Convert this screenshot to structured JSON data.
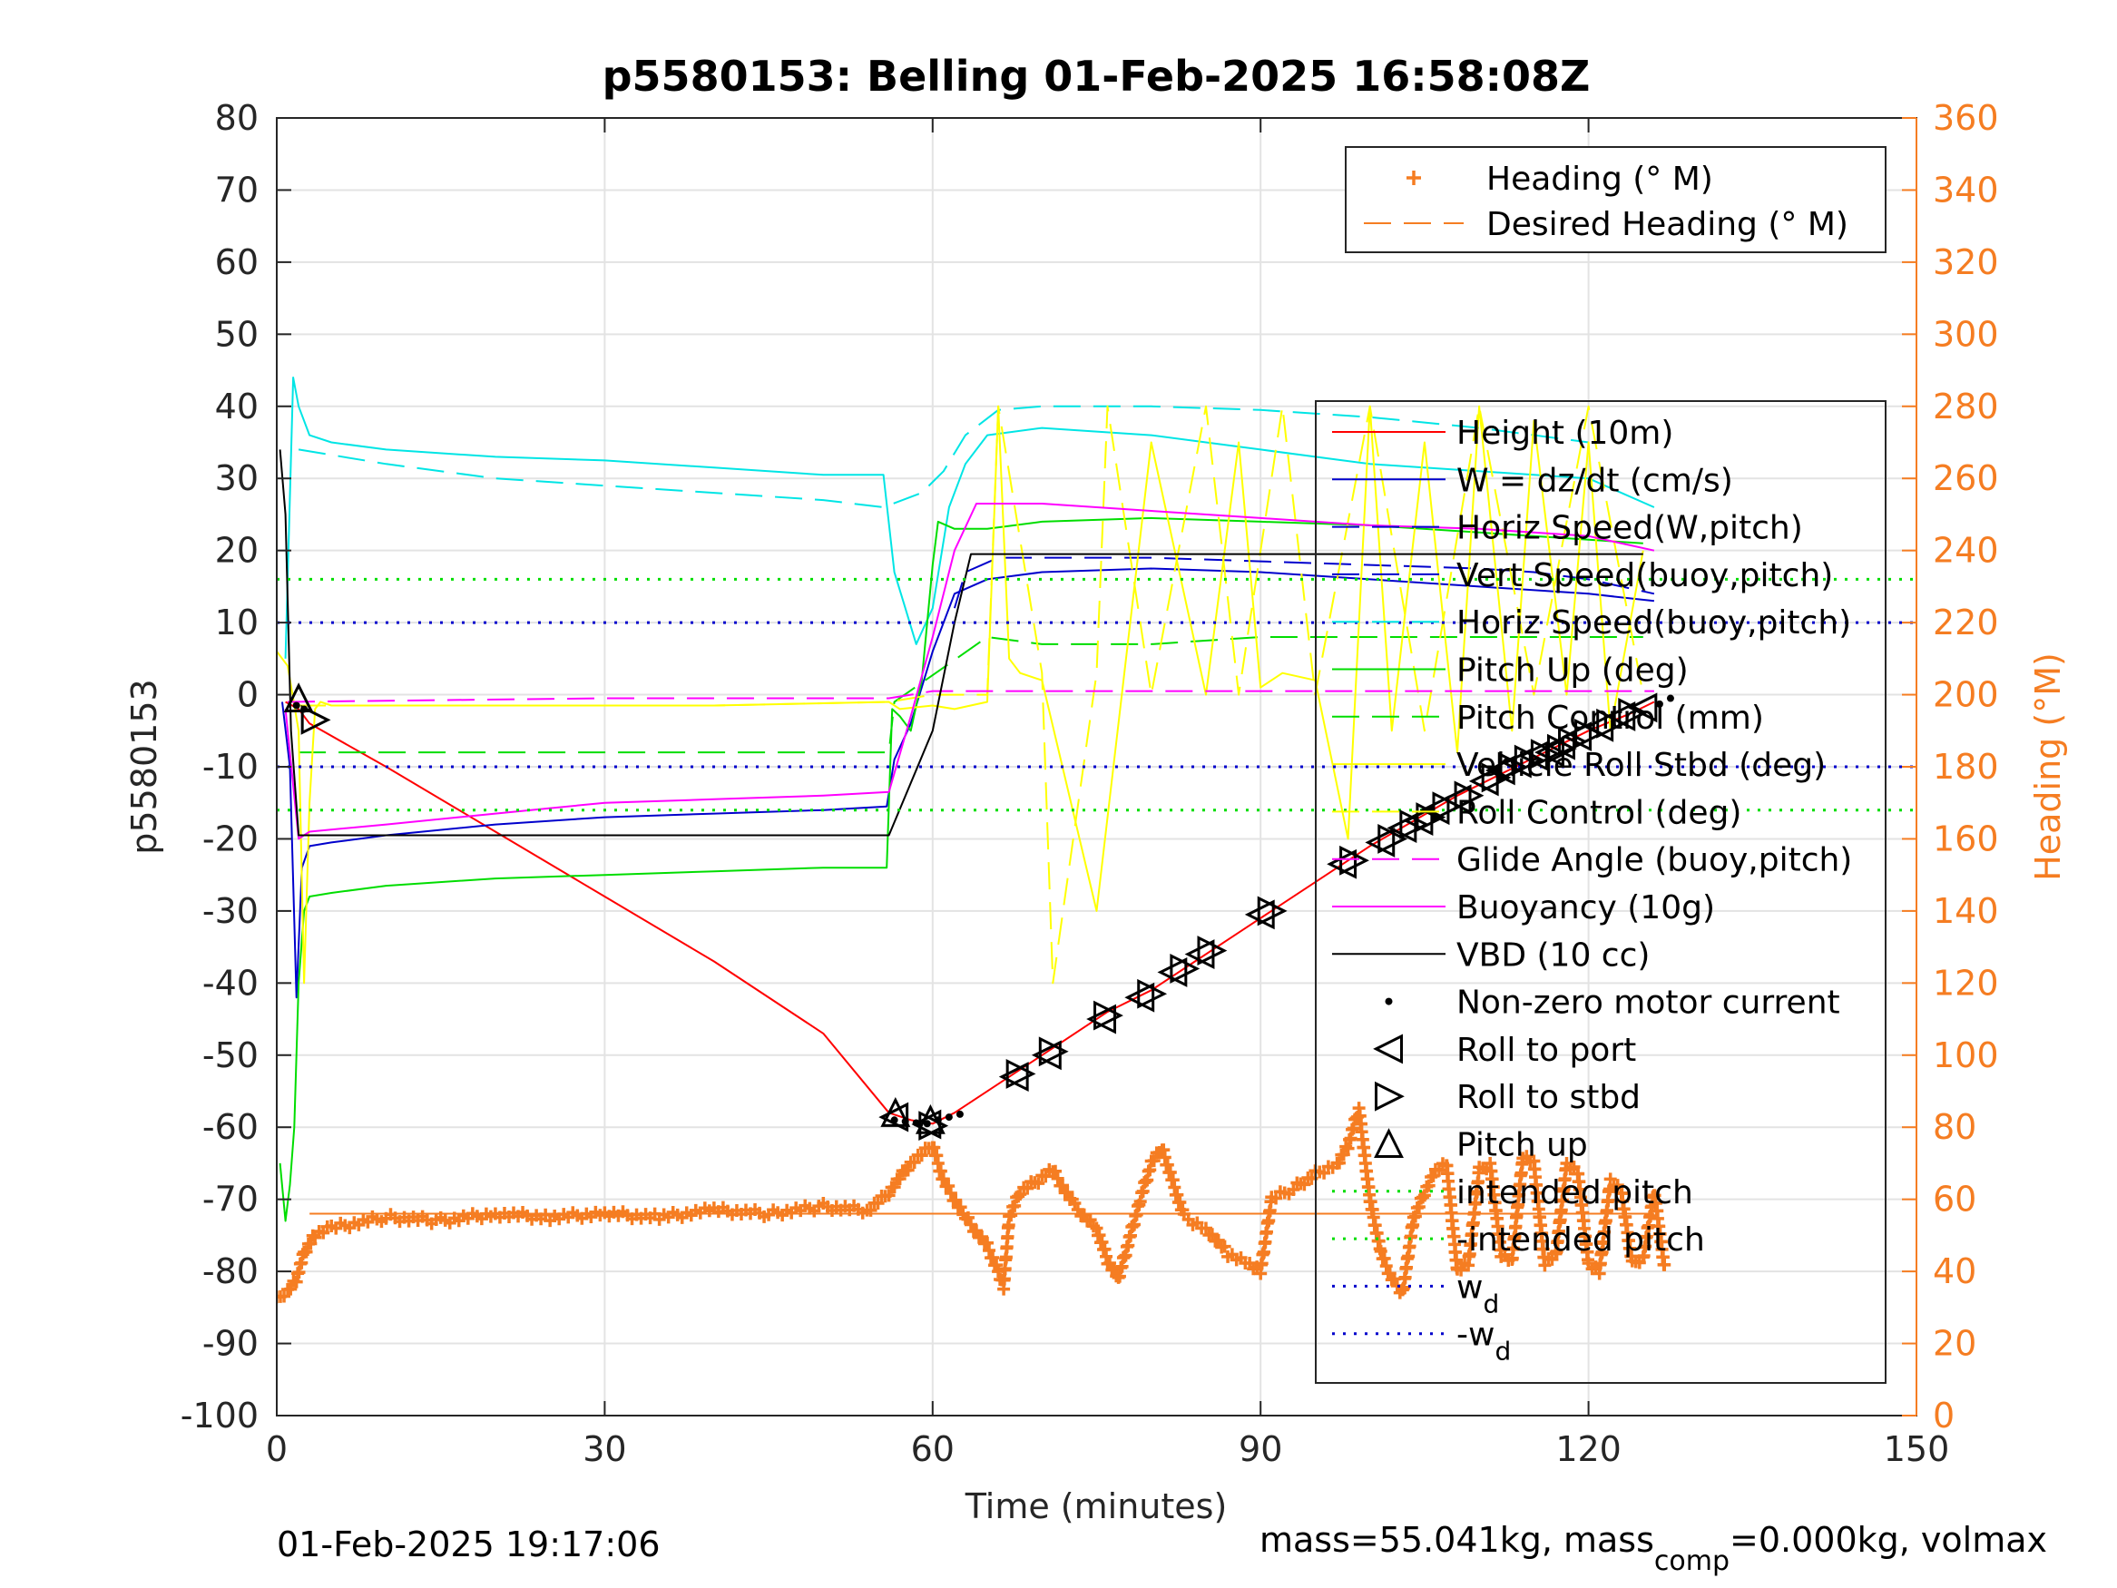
{
  "chart_data": {
    "type": "line",
    "title": "p5580153: Belling 01-Feb-2025 16:58:08Z",
    "xlabel": "Time (minutes)",
    "ylabel": "p5580153",
    "ylabel_right": "Heading (°M)",
    "xlim": [
      0,
      150
    ],
    "ylim": [
      -100,
      80
    ],
    "ylim_right": [
      0,
      360
    ],
    "xticks": [
      "0",
      "30",
      "60",
      "90",
      "120",
      "150"
    ],
    "yticks": [
      "80",
      "70",
      "60",
      "50",
      "40",
      "30",
      "20",
      "10",
      "0",
      "-10",
      "-20",
      "-30",
      "-40",
      "-50",
      "-60",
      "-70",
      "-80",
      "-90",
      "-100"
    ],
    "yticks_right": [
      "360",
      "340",
      "320",
      "300",
      "280",
      "260",
      "240",
      "220",
      "200",
      "180",
      "160",
      "140",
      "120",
      "100",
      "80",
      "60",
      "40",
      "20",
      "0"
    ],
    "grid": true,
    "footer_left": "01-Feb-2025 19:17:06",
    "footer_right": "mass=55.041kg, mass",
    "footer_sub": "comp",
    "footer_right2": "=0.000kg, volmax",
    "colors": {
      "red": "#ff0000",
      "blue": "#0000cc",
      "magenta": "#ff00ff",
      "cyan": "#00e5e5",
      "green": "#00dd00",
      "yellow": "#ffff00",
      "black": "#000000",
      "orange": "#f57d22",
      "grid": "#e3e3e3"
    },
    "legend_top": {
      "position": "top-right",
      "entries": [
        {
          "label": "Heading (° M)",
          "style": "plus",
          "color": "orange"
        },
        {
          "label": "Desired Heading (° M)",
          "style": "dash",
          "color": "orange"
        }
      ]
    },
    "legend_main": {
      "position": "right",
      "entries": [
        {
          "label": "Height (10m)",
          "style": "line",
          "color": "red"
        },
        {
          "label": "W = dz/dt (cm/s)",
          "style": "line",
          "color": "blue"
        },
        {
          "label": "Horiz Speed(W,pitch)",
          "style": "dash",
          "color": "blue"
        },
        {
          "label": "Vert Speed(buoy,pitch)",
          "style": "dash",
          "color": "blue"
        },
        {
          "label": "Horiz Speed(buoy,pitch)",
          "style": "dash",
          "color": "cyan"
        },
        {
          "label": "Pitch Up (deg)",
          "style": "line",
          "color": "green"
        },
        {
          "label": "Pitch Control (mm)",
          "style": "dash",
          "color": "green"
        },
        {
          "label": "Vehicle Roll Stbd (deg)",
          "style": "line",
          "color": "yellow"
        },
        {
          "label": "Roll Control (deg)",
          "style": "dash",
          "color": "yellow"
        },
        {
          "label": "Glide Angle (buoy,pitch)",
          "style": "dash",
          "color": "magenta"
        },
        {
          "label": "Buoyancy (10g)",
          "style": "line",
          "color": "magenta"
        },
        {
          "label": "VBD (10 cc)",
          "style": "line",
          "color": "black"
        },
        {
          "label": "Non-zero motor current",
          "style": "dot",
          "color": "black"
        },
        {
          "label": "Roll to port",
          "style": "tri-left",
          "color": "black"
        },
        {
          "label": "Roll to stbd",
          "style": "tri-right",
          "color": "black"
        },
        {
          "label": "Pitch up",
          "style": "tri-up",
          "color": "black"
        },
        {
          "label": "intended pitch",
          "style": "dots",
          "color": "green"
        },
        {
          "label": "-intended pitch",
          "style": "dots",
          "color": "green"
        },
        {
          "label": "w",
          "sub": "d",
          "style": "dots",
          "color": "blue"
        },
        {
          "label": "-w",
          "sub": "d",
          "style": "dots",
          "color": "blue"
        }
      ]
    },
    "series": [
      {
        "name": "Height (10m)",
        "color": "red",
        "style": "line",
        "x": [
          0.8,
          2,
          3,
          10,
          20,
          30,
          40,
          50,
          56,
          58,
          60,
          62,
          64,
          68,
          72,
          76,
          80,
          84,
          88,
          92,
          96,
          100,
          104,
          108,
          112,
          116,
          120,
          124,
          126
        ],
        "y": [
          -1,
          -2,
          -4,
          -10,
          -19,
          -28,
          -37,
          -47,
          -58,
          -59,
          -59.5,
          -58,
          -56,
          -52,
          -48,
          -44,
          -41,
          -37,
          -33,
          -29,
          -25,
          -21,
          -17.5,
          -14,
          -11,
          -8,
          -5,
          -2.5,
          -1
        ]
      },
      {
        "name": "W = dz/dt (cm/s)",
        "color": "blue",
        "style": "line",
        "x": [
          0.5,
          1.2,
          1.8,
          2.3,
          3,
          5,
          10,
          20,
          30,
          40,
          50,
          55.8,
          56.5,
          58,
          60,
          62,
          65,
          70,
          80,
          90,
          100,
          110,
          120,
          126
        ],
        "y": [
          -1,
          -10,
          -42,
          -24,
          -21,
          -20.5,
          -19.5,
          -18,
          -17,
          -16.5,
          -16,
          -15.5,
          -9,
          -4,
          6,
          14,
          16,
          17,
          17.5,
          17,
          16,
          15,
          14,
          13
        ]
      },
      {
        "name": "Horiz Speed(W,pitch)",
        "color": "blue",
        "style": "dash",
        "x": [
          62,
          63,
          66,
          70,
          80,
          90,
          100,
          110,
          115,
          120,
          126
        ],
        "y": [
          12,
          17,
          19,
          19,
          19,
          18.5,
          18,
          17.5,
          17,
          16,
          14
        ]
      },
      {
        "name": "Horiz Speed(buoy,pitch)",
        "color": "cyan",
        "style": "line",
        "x": [
          0.8,
          1.5,
          2,
          3,
          5,
          10,
          20,
          30,
          40,
          50,
          55.5,
          56.5,
          57.5,
          58.5,
          60,
          61.5,
          63,
          65,
          70,
          80,
          90,
          100,
          110,
          120,
          126
        ],
        "y": [
          5,
          44,
          40,
          36,
          35,
          34,
          33,
          32.5,
          31.5,
          30.5,
          30.5,
          17,
          12,
          7,
          12,
          26,
          32,
          36,
          37,
          36,
          34,
          32,
          31,
          30,
          26
        ]
      },
      {
        "name": "Horiz Speed(buoy,pitch) dash",
        "color": "cyan",
        "style": "dash",
        "x": [
          2,
          10,
          20,
          30,
          40,
          50,
          55.5,
          59,
          61,
          63,
          66,
          70,
          80,
          90,
          100,
          110,
          120
        ],
        "y": [
          34,
          32,
          30,
          29,
          28,
          27,
          26,
          28,
          31,
          36,
          39.5,
          40,
          40,
          39.5,
          38.5,
          37,
          35
        ]
      },
      {
        "name": "Pitch Up (deg)",
        "color": "green",
        "style": "line",
        "x": [
          0.3,
          0.8,
          1.2,
          1.6,
          2,
          2.5,
          3,
          5,
          10,
          20,
          30,
          40,
          50,
          55.8,
          56.3,
          57,
          58,
          59,
          60,
          60.5,
          62,
          65,
          70,
          80,
          90,
          100,
          110,
          120,
          125
        ],
        "y": [
          -65,
          -73,
          -68,
          -60,
          -40,
          -30,
          -28,
          -27.5,
          -26.5,
          -25.5,
          -25,
          -24.5,
          -24,
          -24,
          -2,
          -3,
          -5,
          2,
          18,
          24,
          23,
          23,
          24,
          24.5,
          24,
          23.5,
          22.5,
          21.5,
          21
        ]
      },
      {
        "name": "Pitch Control (mm)",
        "color": "green",
        "style": "dash",
        "x": [
          2,
          56,
          56.5,
          65,
          70,
          80,
          90,
          100,
          110,
          120,
          125
        ],
        "y": [
          -8,
          -8,
          -1,
          8,
          7,
          7,
          8,
          8,
          8,
          8,
          8
        ]
      },
      {
        "name": "Vehicle Roll Stbd (deg)",
        "color": "yellow",
        "style": "line",
        "x": [
          0,
          1,
          2,
          2.5,
          3,
          3.5,
          4,
          5,
          20,
          40,
          56,
          57,
          60,
          62,
          65,
          66,
          67,
          68,
          70,
          75,
          80,
          85,
          88,
          90,
          92,
          95,
          98,
          100,
          102,
          105,
          108,
          110,
          113,
          115,
          118,
          120,
          122,
          125
        ],
        "y": [
          6,
          4,
          -5,
          -40,
          -15,
          -2,
          -1,
          -1.5,
          -1.5,
          -1.5,
          -1,
          -2,
          -1.5,
          -2,
          -1,
          40,
          5,
          3,
          2,
          -30,
          35,
          0,
          35,
          1,
          3,
          2,
          -20,
          40,
          -5,
          35,
          -8,
          40,
          -5,
          38,
          0,
          35,
          -5,
          20
        ]
      },
      {
        "name": "Roll Control (deg)",
        "color": "yellow",
        "style": "dash",
        "x": [
          2,
          40,
          56,
          60,
          65,
          66,
          70,
          71,
          75,
          76,
          80,
          85,
          88,
          92,
          95,
          100,
          105,
          110,
          115,
          120,
          125
        ],
        "y": [
          -1.5,
          -1.5,
          -1,
          0,
          0,
          40,
          3,
          -40,
          3,
          40,
          0,
          40,
          0,
          40,
          0,
          40,
          -5,
          40,
          0,
          40,
          0
        ]
      },
      {
        "name": "Glide Angle (buoy,pitch)",
        "color": "magenta",
        "style": "dash",
        "x": [
          1,
          30,
          56,
          58,
          60,
          62,
          66,
          70,
          80,
          90,
          100,
          110,
          120,
          126
        ],
        "y": [
          -1,
          -0.5,
          -0.5,
          0,
          0.5,
          0.5,
          0.5,
          0.5,
          0.5,
          0.5,
          0.5,
          0.5,
          0.5,
          0.5
        ]
      },
      {
        "name": "Buoyancy (10g)",
        "color": "magenta",
        "style": "line",
        "x": [
          0.8,
          2,
          3,
          10,
          20,
          30,
          40,
          50,
          56,
          58,
          60,
          62,
          64,
          70,
          80,
          90,
          100,
          110,
          120,
          126
        ],
        "y": [
          -2,
          -20,
          -19,
          -18,
          -16.5,
          -15,
          -14.5,
          -14,
          -13.5,
          -3,
          8,
          20,
          26.5,
          26.5,
          25.5,
          24.5,
          23.5,
          23,
          22,
          20
        ]
      },
      {
        "name": "VBD (10 cc)",
        "color": "black",
        "style": "line",
        "x": [
          0.3,
          0.8,
          1.3,
          2,
          3,
          56,
          60,
          62,
          63.5,
          70,
          80,
          90,
          100,
          110,
          120,
          125
        ],
        "y": [
          34,
          25,
          -5,
          -19.5,
          -19.5,
          -19.5,
          -5,
          10,
          19.5,
          19.5,
          19.5,
          19.5,
          19.5,
          19.5,
          19.5,
          19.5
        ]
      },
      {
        "name": "intended pitch",
        "color": "green",
        "style": "dots",
        "x": [
          0,
          150
        ],
        "y": [
          16,
          16
        ]
      },
      {
        "name": "-intended pitch",
        "color": "green",
        "style": "dots",
        "x": [
          0,
          150
        ],
        "y": [
          -16,
          -16
        ]
      },
      {
        "name": "w_d",
        "color": "blue",
        "style": "dots",
        "x": [
          0,
          150
        ],
        "y": [
          10,
          10
        ]
      },
      {
        "name": "-w_d",
        "color": "blue",
        "style": "dots",
        "x": [
          0,
          150
        ],
        "y": [
          -10,
          -10
        ]
      }
    ],
    "heading": {
      "name": "Heading (° M)",
      "x": [
        0,
        1,
        1.8,
        2.5,
        3.5,
        5,
        10,
        15,
        20,
        25,
        30,
        35,
        40,
        45,
        50,
        54,
        56,
        58,
        60,
        61,
        63,
        65,
        66,
        66.5,
        67,
        68,
        70,
        71,
        73,
        75,
        76,
        77,
        79,
        80,
        81,
        83,
        85,
        87,
        89,
        90,
        91,
        93,
        95,
        97,
        98,
        99,
        100,
        101,
        102,
        103,
        104,
        105,
        106,
        107,
        108,
        109,
        110,
        111,
        112,
        113,
        114,
        115,
        116,
        117,
        118,
        119,
        120,
        121,
        122,
        123,
        124,
        125,
        126,
        127
      ],
      "y": [
        32,
        35,
        38,
        45,
        50,
        52,
        55,
        54,
        56,
        55,
        56,
        55,
        57,
        56,
        58,
        57,
        62,
        70,
        75,
        65,
        55,
        47,
        40,
        36,
        55,
        62,
        66,
        68,
        58,
        52,
        43,
        38,
        60,
        70,
        74,
        55,
        52,
        45,
        42,
        40,
        60,
        63,
        67,
        70,
        75,
        85,
        60,
        45,
        38,
        34,
        55,
        62,
        68,
        70,
        40,
        42,
        68,
        70,
        45,
        43,
        72,
        70,
        42,
        44,
        70,
        68,
        42,
        40,
        65,
        62,
        42,
        44,
        62,
        40
      ]
    },
    "desired_heading": {
      "name": "Desired Heading (° M)",
      "x": [
        3,
        126
      ],
      "y": [
        56,
        56
      ]
    },
    "motor_dots": {
      "name": "Non-zero motor current",
      "x": [
        1.8,
        2.5,
        56.5,
        57.5,
        58.5,
        59.5,
        60.5,
        61.5,
        62.5,
        126.5,
        127.5
      ],
      "y": [
        -1.5,
        -2,
        -59,
        -59.2,
        -59.4,
        -59.5,
        -59,
        -58.6,
        -58.2,
        -1.3,
        -0.5
      ]
    },
    "roll_port": {
      "name": "Roll to port",
      "x": [
        56.5,
        59.5,
        67.5,
        70.5,
        75.5,
        79,
        82,
        84.5,
        90,
        97.5,
        101,
        103,
        104.5,
        106,
        108,
        110.5,
        112,
        113.5,
        115,
        116.5,
        117.5,
        119,
        121,
        123,
        125
      ],
      "y": [
        -58.6,
        -59.6,
        -53,
        -50,
        -45,
        -42,
        -38.5,
        -36,
        -30.5,
        -23.5,
        -20.5,
        -18.5,
        -17.5,
        -16,
        -14.5,
        -12,
        -10.5,
        -9.5,
        -8.5,
        -8,
        -7,
        -5.8,
        -4.5,
        -3,
        -1.8
      ]
    },
    "roll_stbd": {
      "name": "Roll to stbd",
      "x": [
        3.5,
        60,
        68,
        71,
        76,
        80,
        83,
        85.5,
        91,
        98.5,
        102,
        104,
        105.5,
        107,
        109,
        111.5,
        113,
        114.5,
        116,
        117.5,
        118.5,
        120,
        122,
        124
      ],
      "y": [
        -3.5,
        -59.8,
        -52.6,
        -49.5,
        -44.5,
        -41.5,
        -38,
        -35.5,
        -30,
        -23,
        -20,
        -18,
        -17,
        -15.5,
        -14,
        -11.5,
        -10,
        -9,
        -8.2,
        -7.5,
        -6.5,
        -5.4,
        -4,
        -2.5
      ]
    },
    "pitch_up": {
      "name": "Pitch up",
      "x": [
        2,
        56.6,
        59.8
      ],
      "y": [
        -0.5,
        -58,
        -59
      ]
    }
  }
}
